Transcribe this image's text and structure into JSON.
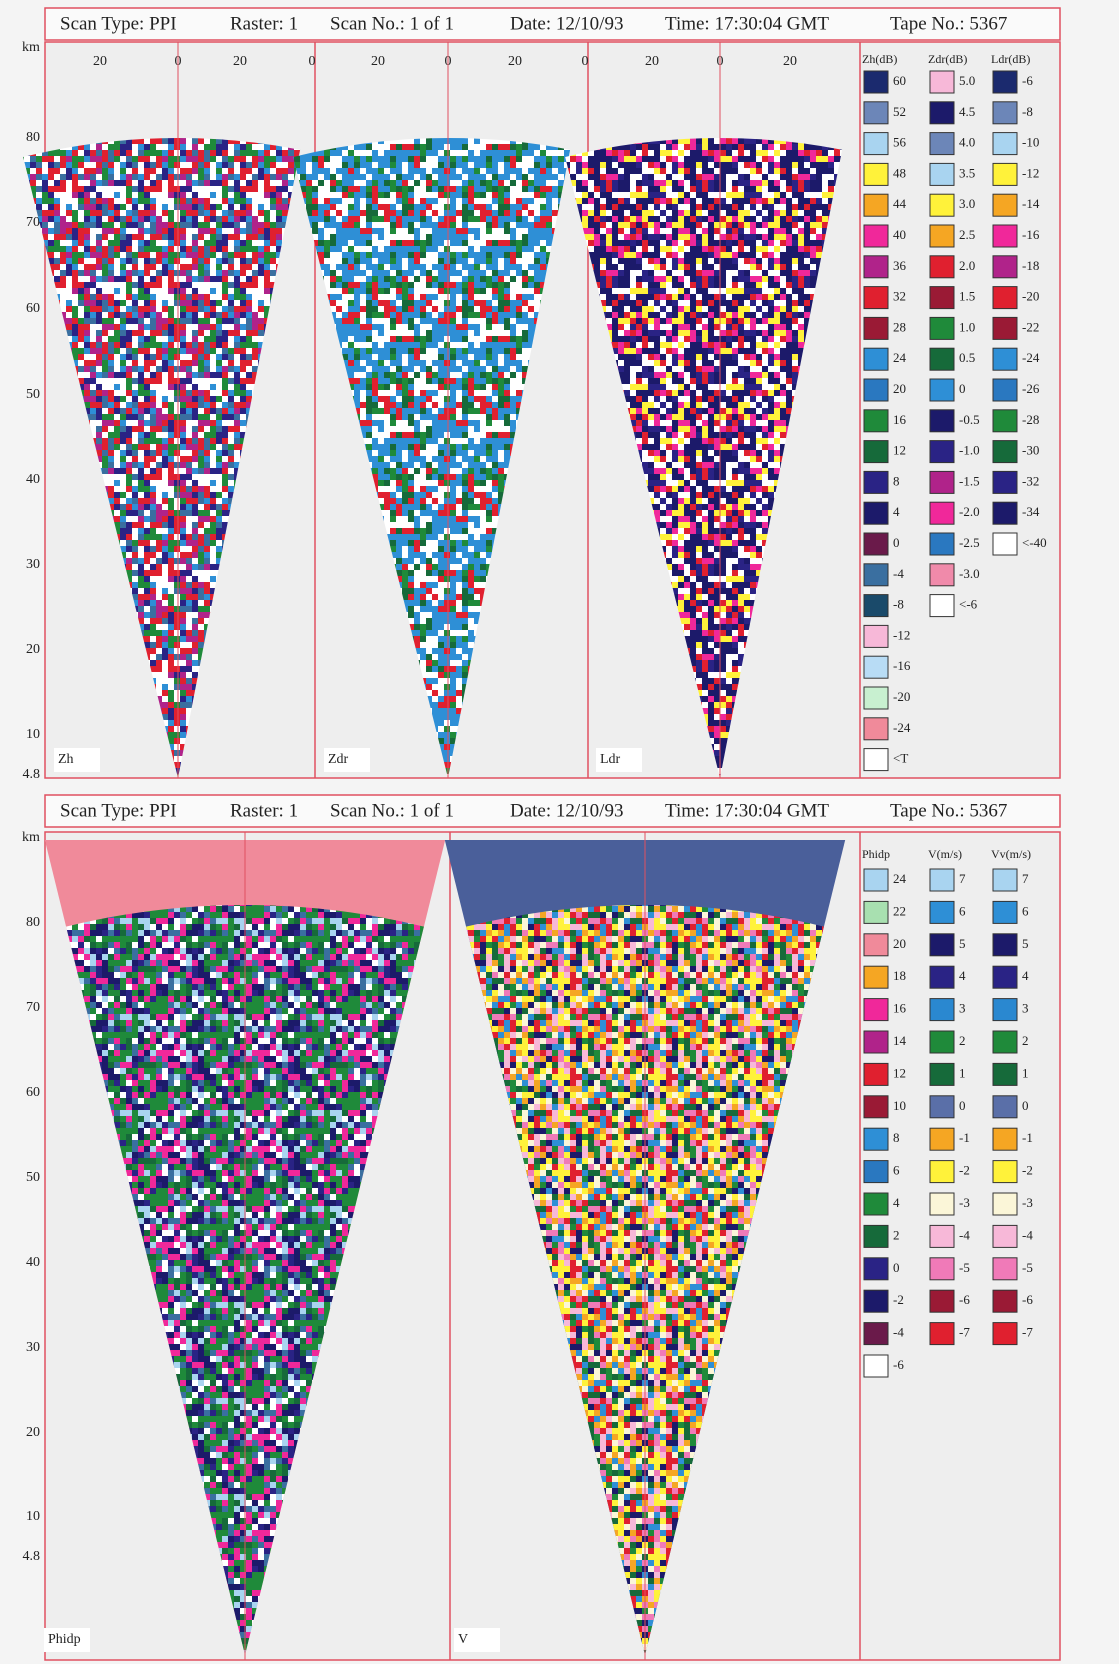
{
  "panels": [
    {
      "header": [
        "Scan Type: PPI",
        "Raster: 1",
        "Scan No.: 1 of 1",
        "Date: 12/10/93",
        "Time: 17:30:04 GMT",
        "Tape No.: 5367"
      ],
      "y_axis_labels": [
        "km",
        "80",
        "70",
        "60",
        "50",
        "40",
        "30",
        "20",
        "10",
        "4.8"
      ],
      "x_axis_labels": [
        "20",
        "0",
        "20",
        "0",
        "20",
        "0",
        "20",
        "0",
        "20",
        "0",
        "20"
      ],
      "plot_labels": [
        "Zh",
        "Zdr",
        "Ldr"
      ],
      "legend": [
        {
          "title": "Zh(dB)",
          "entries": [
            {
              "label": "60",
              "color": "#1b2a6e"
            },
            {
              "label": "52",
              "color": "#6c86b8"
            },
            {
              "label": "56",
              "color": "#a9d4f0"
            },
            {
              "label": "48",
              "color": "#fff23a"
            },
            {
              "label": "44",
              "color": "#f5a623"
            },
            {
              "label": "40",
              "color": "#f0289a"
            },
            {
              "label": "36",
              "color": "#b0238a"
            },
            {
              "label": "32",
              "color": "#e0202f"
            },
            {
              "label": "28",
              "color": "#9a1a35"
            },
            {
              "label": "24",
              "color": "#2e8fd6"
            },
            {
              "label": "20",
              "color": "#2a78c0"
            },
            {
              "label": "16",
              "color": "#1f8a3a"
            },
            {
              "label": "12",
              "color": "#166a3a"
            },
            {
              "label": "8",
              "color": "#2a2385"
            },
            {
              "label": "4",
              "color": "#1c1a6a"
            },
            {
              "label": "0",
              "color": "#6a1a4a"
            },
            {
              "label": "-4",
              "color": "#3a6fa0"
            },
            {
              "label": "-8",
              "color": "#1a4a6a"
            },
            {
              "label": "-12",
              "color": "#f7b8d8"
            },
            {
              "label": "-16",
              "color": "#b8dcf5"
            },
            {
              "label": "-20",
              "color": "#c8f0d0"
            },
            {
              "label": "-24",
              "color": "#f08a9a"
            },
            {
              "label": "<T",
              "color": "#ffffff"
            }
          ]
        },
        {
          "title": "Zdr(dB)",
          "entries": [
            {
              "label": "5.0",
              "color": "#f7b8d8"
            },
            {
              "label": "4.5",
              "color": "#1c1a6a"
            },
            {
              "label": "4.0",
              "color": "#6c86b8"
            },
            {
              "label": "3.5",
              "color": "#a9d4f0"
            },
            {
              "label": "3.0",
              "color": "#fff23a"
            },
            {
              "label": "2.5",
              "color": "#f5a623"
            },
            {
              "label": "2.0",
              "color": "#e0202f"
            },
            {
              "label": "1.5",
              "color": "#9a1a35"
            },
            {
              "label": "1.0",
              "color": "#1f8a3a"
            },
            {
              "label": "0.5",
              "color": "#166a3a"
            },
            {
              "label": "0",
              "color": "#2e8fd6"
            },
            {
              "label": "-0.5",
              "color": "#1c1a6a"
            },
            {
              "label": "-1.0",
              "color": "#2a2385"
            },
            {
              "label": "-1.5",
              "color": "#b0238a"
            },
            {
              "label": "-2.0",
              "color": "#f0289a"
            },
            {
              "label": "-2.5",
              "color": "#2a78c0"
            },
            {
              "label": "-3.0",
              "color": "#f08aaa"
            },
            {
              "label": "<-6",
              "color": "#ffffff"
            }
          ]
        },
        {
          "title": "Ldr(dB)",
          "entries": [
            {
              "label": "-6",
              "color": "#1b2a6e"
            },
            {
              "label": "-8",
              "color": "#6c86b8"
            },
            {
              "label": "-10",
              "color": "#a9d4f0"
            },
            {
              "label": "-12",
              "color": "#fff23a"
            },
            {
              "label": "-14",
              "color": "#f5a623"
            },
            {
              "label": "-16",
              "color": "#f0289a"
            },
            {
              "label": "-18",
              "color": "#b0238a"
            },
            {
              "label": "-20",
              "color": "#e0202f"
            },
            {
              "label": "-22",
              "color": "#9a1a35"
            },
            {
              "label": "-24",
              "color": "#2e8fd6"
            },
            {
              "label": "-26",
              "color": "#2a78c0"
            },
            {
              "label": "-28",
              "color": "#1f8a3a"
            },
            {
              "label": "-30",
              "color": "#166a3a"
            },
            {
              "label": "-32",
              "color": "#2a2385"
            },
            {
              "label": "-34",
              "color": "#1c1a6a"
            },
            {
              "label": "<-40",
              "color": "#ffffff"
            }
          ]
        }
      ]
    },
    {
      "header": [
        "Scan Type: PPI",
        "Raster: 1",
        "Scan No.: 1 of 1",
        "Date: 12/10/93",
        "Time: 17:30:04 GMT",
        "Tape No.: 5367"
      ],
      "y_axis_labels": [
        "km",
        "80",
        "70",
        "60",
        "50",
        "40",
        "30",
        "20",
        "10",
        "4.8"
      ],
      "plot_labels": [
        "Phidp",
        "V"
      ],
      "legend": [
        {
          "title": "Phidp",
          "entries": [
            {
              "label": "24",
              "color": "#a9d4f0"
            },
            {
              "label": "22",
              "color": "#a8e0b0"
            },
            {
              "label": "20",
              "color": "#f08a9a"
            },
            {
              "label": "18",
              "color": "#f5a623"
            },
            {
              "label": "16",
              "color": "#f0289a"
            },
            {
              "label": "14",
              "color": "#b0238a"
            },
            {
              "label": "12",
              "color": "#e0202f"
            },
            {
              "label": "10",
              "color": "#9a1a35"
            },
            {
              "label": "8",
              "color": "#2e8fd6"
            },
            {
              "label": "6",
              "color": "#2a78c0"
            },
            {
              "label": "4",
              "color": "#1f8a3a"
            },
            {
              "label": "2",
              "color": "#166a3a"
            },
            {
              "label": "0",
              "color": "#2a2385"
            },
            {
              "label": "-2",
              "color": "#1c1a6a"
            },
            {
              "label": "-4",
              "color": "#6a1a4a"
            },
            {
              "label": "-6",
              "color": "#ffffff"
            }
          ]
        },
        {
          "title": "V(m/s)",
          "entries": [
            {
              "label": "7",
              "color": "#a9d4f0"
            },
            {
              "label": "6",
              "color": "#2e8fd6"
            },
            {
              "label": "5",
              "color": "#1c1a6a"
            },
            {
              "label": "4",
              "color": "#2a2385"
            },
            {
              "label": "3",
              "color": "#2a88d0"
            },
            {
              "label": "2",
              "color": "#1f8a3a"
            },
            {
              "label": "1",
              "color": "#166a3a"
            },
            {
              "label": "0",
              "color": "#5a6fa8"
            },
            {
              "label": "-1",
              "color": "#f5a623"
            },
            {
              "label": "-2",
              "color": "#fff23a"
            },
            {
              "label": "-3",
              "color": "#fbf6d8"
            },
            {
              "label": "-4",
              "color": "#f7b8d8"
            },
            {
              "label": "-5",
              "color": "#f07ab8"
            },
            {
              "label": "-6",
              "color": "#9a1a35"
            },
            {
              "label": "-7",
              "color": "#e0202f"
            }
          ]
        },
        {
          "title": "Vv(m/s)",
          "entries": [
            {
              "label": "7",
              "color": "#a9d4f0"
            },
            {
              "label": "6",
              "color": "#2e8fd6"
            },
            {
              "label": "5",
              "color": "#1c1a6a"
            },
            {
              "label": "4",
              "color": "#2a2385"
            },
            {
              "label": "3",
              "color": "#2a88d0"
            },
            {
              "label": "2",
              "color": "#1f8a3a"
            },
            {
              "label": "1",
              "color": "#166a3a"
            },
            {
              "label": "0",
              "color": "#5a6fa8"
            },
            {
              "label": "-1",
              "color": "#f5a623"
            },
            {
              "label": "-2",
              "color": "#fff23a"
            },
            {
              "label": "-3",
              "color": "#fbf6d8"
            },
            {
              "label": "-4",
              "color": "#f7b8d8"
            },
            {
              "label": "-5",
              "color": "#f07ab8"
            },
            {
              "label": "-6",
              "color": "#9a1a35"
            },
            {
              "label": "-7",
              "color": "#e0202f"
            }
          ]
        }
      ]
    }
  ]
}
